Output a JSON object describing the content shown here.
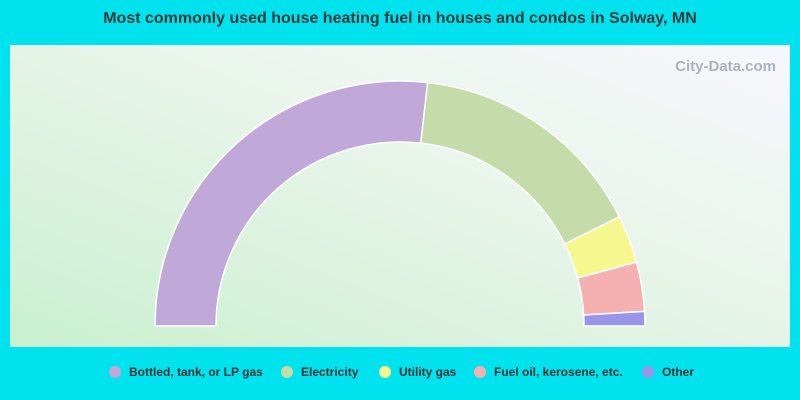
{
  "chart_data": {
    "type": "half-donut",
    "title": "Most commonly used house heating fuel in houses and condos in Solway, MN",
    "watermark": "City-Data.com",
    "categories": [
      "Bottled, tank, or LP gas",
      "Electricity",
      "Utility gas",
      "Fuel oil, kerosene, etc.",
      "Other"
    ],
    "values": [
      53.6,
      31.7,
      6.3,
      6.5,
      1.9
    ],
    "colors": [
      "#c0a8d9",
      "#c5dba9",
      "#f7f78f",
      "#f5b1b1",
      "#9b95ea"
    ]
  }
}
